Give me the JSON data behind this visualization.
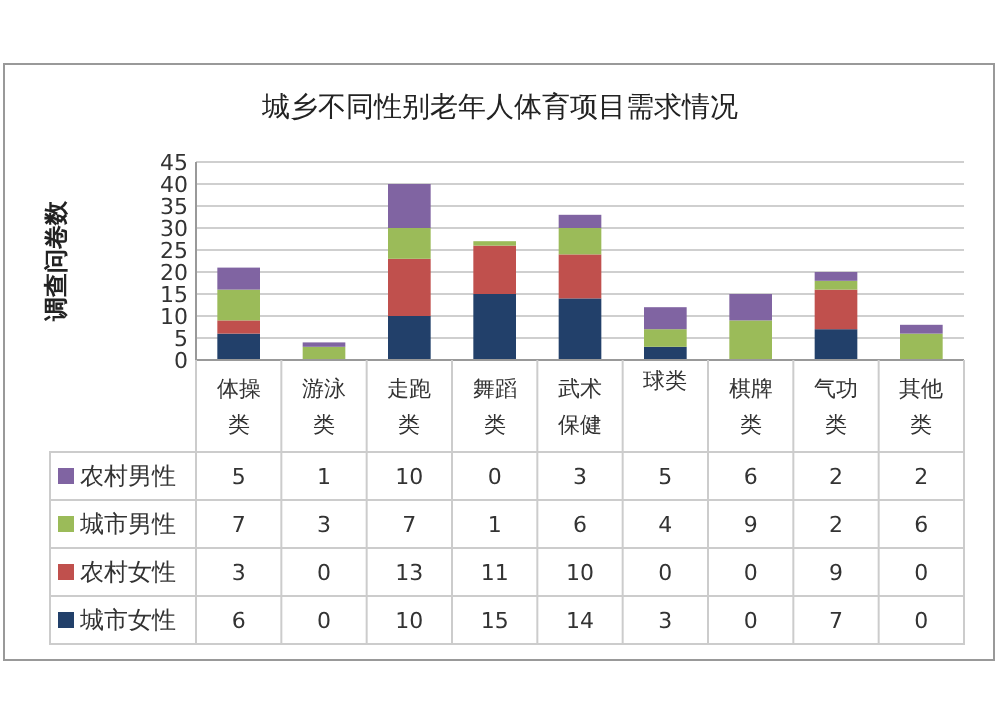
{
  "chart_data": {
    "type": "bar",
    "title": "城乡不同性别老年人体育项目需求情况",
    "ylabel": "调查问卷数",
    "categories": [
      "体操类",
      "游泳类",
      "走跑类",
      "舞蹈类",
      "武术保健",
      "球类",
      "棋牌类",
      "气功类",
      "其他类"
    ],
    "stacked": true,
    "series": [
      {
        "name": "城市女性",
        "color": "#22406a",
        "values": [
          6,
          0,
          10,
          15,
          14,
          3,
          0,
          7,
          0
        ]
      },
      {
        "name": "农村女性",
        "color": "#c0504d",
        "values": [
          3,
          0,
          13,
          11,
          10,
          0,
          0,
          9,
          0
        ]
      },
      {
        "name": "城市男性",
        "color": "#9bbb59",
        "values": [
          7,
          3,
          7,
          1,
          6,
          4,
          9,
          2,
          6
        ]
      },
      {
        "name": "农村男性",
        "color": "#8064a2",
        "values": [
          5,
          1,
          10,
          0,
          3,
          5,
          6,
          2,
          2
        ]
      }
    ],
    "ylim": [
      0,
      45
    ],
    "yticks": [
      0,
      5,
      10,
      15,
      20,
      25,
      30,
      35,
      40,
      45
    ],
    "grid": "y",
    "legend": "bottom",
    "data_labels": true
  }
}
